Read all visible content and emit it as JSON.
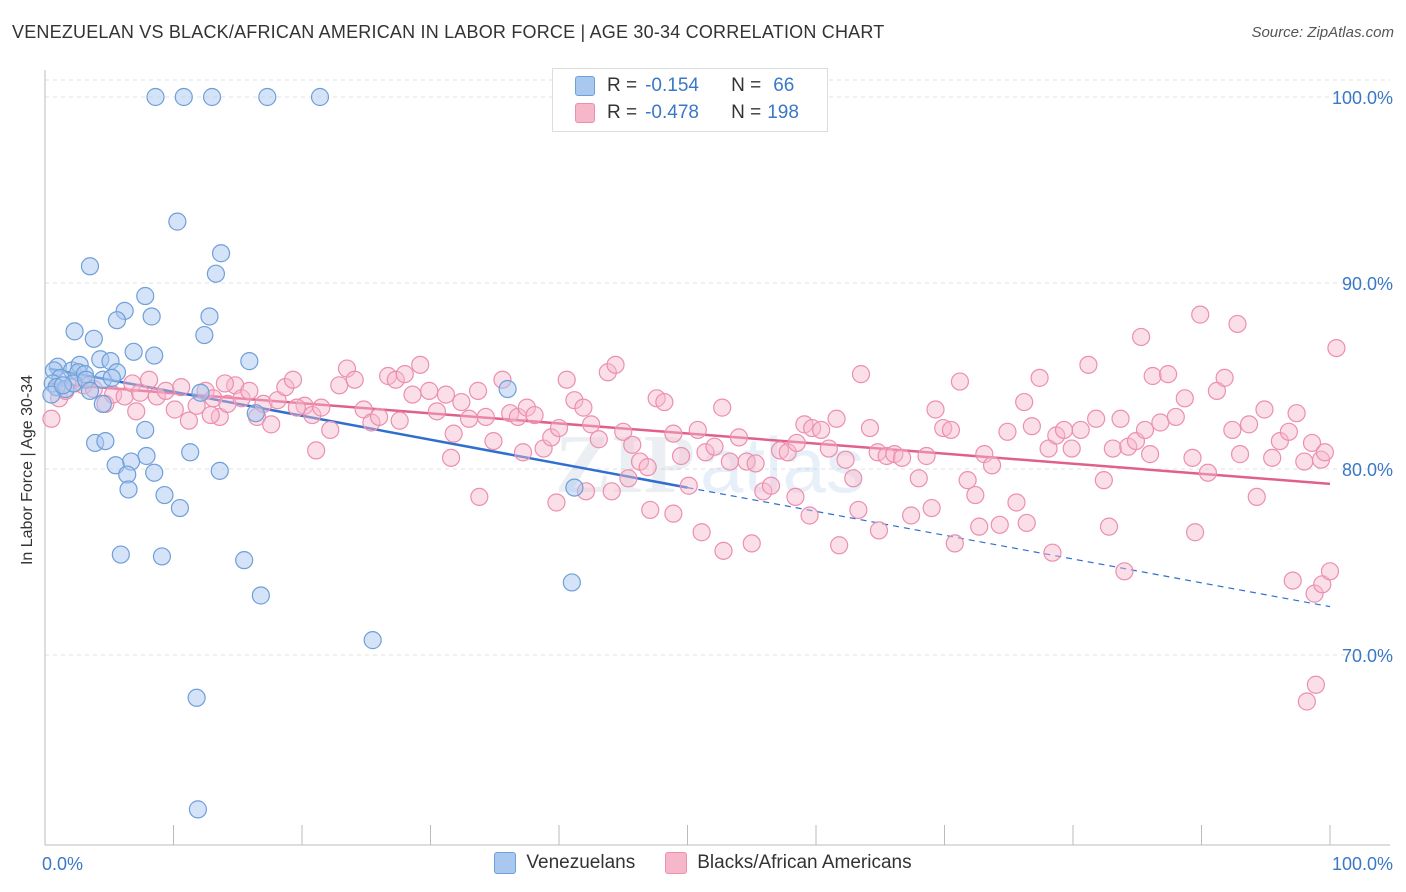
{
  "header": {
    "title": "VENEZUELAN VS BLACK/AFRICAN AMERICAN IN LABOR FORCE | AGE 30-34 CORRELATION CHART",
    "source": "Source: ZipAtlas.com"
  },
  "legend": {
    "r_label": "R =",
    "n_label": "N =",
    "venezuelans": {
      "r": "-0.154",
      "n": "66"
    },
    "blacks": {
      "r": "-0.478",
      "n": "198"
    }
  },
  "watermark": {
    "zip": "ZIP",
    "atlas": "atlas"
  },
  "colors": {
    "venezuelans_fill": "#a9c8f0",
    "venezuelans_stroke": "#6f9fd8",
    "venezuelans_line": "#2f6fd0",
    "blacks_fill": "#f7b7cb",
    "blacks_stroke": "#ec8fae",
    "blacks_line": "#e0608c",
    "axis_label": "#3a78c6",
    "grid": "#e2e2e2"
  },
  "chart_data": {
    "type": "scatter",
    "title": "VENEZUELAN VS BLACK/AFRICAN AMERICAN IN LABOR FORCE | AGE 30-34 CORRELATION CHART",
    "xlabel": "",
    "ylabel": "In Labor Force | Age 30-34",
    "xlim": [
      0,
      100
    ],
    "ylim": [
      60,
      102
    ],
    "x_tick_labels": [
      "0.0%",
      "100.0%"
    ],
    "y_ticks": [
      70,
      80,
      90,
      100
    ],
    "y_tick_labels": [
      "70.0%",
      "80.0%",
      "90.0%",
      "100.0%"
    ],
    "grid": true,
    "legend_position": "bottom",
    "series": [
      {
        "name": "Venezuelans",
        "r": -0.154,
        "n": 66,
        "trend": {
          "x0": 0.3,
          "y0": 85.4,
          "x1": 50,
          "y1": 79.0,
          "dashed_to_x": 100,
          "dashed_to_y": 72.6
        },
        "points": [
          [
            8.6,
            100
          ],
          [
            10.8,
            100
          ],
          [
            13,
            100
          ],
          [
            17.3,
            100
          ],
          [
            21.4,
            100
          ],
          [
            10.3,
            93.3
          ],
          [
            13.7,
            91.6
          ],
          [
            3.5,
            90.9
          ],
          [
            13.3,
            90.5
          ],
          [
            7.8,
            89.3
          ],
          [
            6.2,
            88.5
          ],
          [
            5.6,
            88
          ],
          [
            8.3,
            88.2
          ],
          [
            12.8,
            88.2
          ],
          [
            2.3,
            87.4
          ],
          [
            3.8,
            87
          ],
          [
            12.4,
            87.2
          ],
          [
            6.9,
            86.3
          ],
          [
            8.5,
            86.1
          ],
          [
            4.3,
            85.9
          ],
          [
            5.1,
            85.8
          ],
          [
            1,
            85.5
          ],
          [
            2.1,
            85.3
          ],
          [
            2.7,
            85.6
          ],
          [
            2.6,
            85.2
          ],
          [
            3.1,
            85.1
          ],
          [
            0.7,
            85.3
          ],
          [
            15.9,
            85.8
          ],
          [
            5.6,
            85.2
          ],
          [
            1.2,
            84.9
          ],
          [
            0.6,
            84.6
          ],
          [
            0.9,
            84.4
          ],
          [
            1.6,
            84.3
          ],
          [
            2.2,
            84.6
          ],
          [
            3.2,
            84.8
          ],
          [
            3.5,
            84.2
          ],
          [
            0.5,
            84
          ],
          [
            4.5,
            84.8
          ],
          [
            5.2,
            84.9
          ],
          [
            1.4,
            84.5
          ],
          [
            12.1,
            84.1
          ],
          [
            36,
            84.3
          ],
          [
            16.4,
            83
          ],
          [
            4.5,
            83.5
          ],
          [
            7.8,
            82.1
          ],
          [
            3.9,
            81.4
          ],
          [
            4.7,
            81.5
          ],
          [
            11.3,
            80.9
          ],
          [
            7.9,
            80.7
          ],
          [
            6.7,
            80.4
          ],
          [
            5.5,
            80.2
          ],
          [
            6.4,
            79.7
          ],
          [
            8.5,
            79.8
          ],
          [
            13.6,
            79.9
          ],
          [
            6.5,
            78.9
          ],
          [
            9.3,
            78.6
          ],
          [
            10.5,
            77.9
          ],
          [
            41.2,
            79
          ],
          [
            5.9,
            75.4
          ],
          [
            9.1,
            75.3
          ],
          [
            15.5,
            75.1
          ],
          [
            16.8,
            73.2
          ],
          [
            41,
            73.9
          ],
          [
            25.5,
            70.8
          ],
          [
            11.8,
            67.7
          ],
          [
            11.9,
            61.7
          ]
        ]
      },
      {
        "name": "Blacks/African Americans",
        "r": -0.478,
        "n": 198,
        "trend": {
          "x0": 0.3,
          "y0": 84.6,
          "x1": 100,
          "y1": 79.2
        },
        "points": [
          [
            0.5,
            82.7
          ],
          [
            1.1,
            83.8
          ],
          [
            1.6,
            84.2
          ],
          [
            2.3,
            84.6
          ],
          [
            3,
            84.5
          ],
          [
            3.8,
            84.3
          ],
          [
            4.7,
            83.5
          ],
          [
            5.3,
            84
          ],
          [
            6.2,
            83.9
          ],
          [
            6.8,
            84.6
          ],
          [
            7.4,
            84.1
          ],
          [
            8.1,
            84.8
          ],
          [
            8.7,
            83.9
          ],
          [
            9.4,
            84.2
          ],
          [
            10.1,
            83.2
          ],
          [
            10.6,
            84.4
          ],
          [
            11.2,
            82.6
          ],
          [
            11.8,
            83.4
          ],
          [
            12.5,
            84.2
          ],
          [
            13.1,
            83.8
          ],
          [
            13.6,
            82.8
          ],
          [
            14.2,
            83.5
          ],
          [
            14.8,
            84.5
          ],
          [
            15.3,
            83.8
          ],
          [
            15.9,
            84.2
          ],
          [
            16.5,
            82.8
          ],
          [
            17,
            83.5
          ],
          [
            17.6,
            82.4
          ],
          [
            18.1,
            83.7
          ],
          [
            18.7,
            84.4
          ],
          [
            19.3,
            84.8
          ],
          [
            20.2,
            83.4
          ],
          [
            20.8,
            82.9
          ],
          [
            21.5,
            83.3
          ],
          [
            22.2,
            82.1
          ],
          [
            22.9,
            84.5
          ],
          [
            23.5,
            85.4
          ],
          [
            24.1,
            84.8
          ],
          [
            24.8,
            83.2
          ],
          [
            25.4,
            82.5
          ],
          [
            26,
            82.8
          ],
          [
            26.7,
            85
          ],
          [
            27.3,
            84.8
          ],
          [
            28,
            85.1
          ],
          [
            28.6,
            84
          ],
          [
            29.2,
            85.6
          ],
          [
            29.9,
            84.2
          ],
          [
            30.5,
            83.1
          ],
          [
            31.2,
            84
          ],
          [
            31.8,
            81.9
          ],
          [
            32.4,
            83.6
          ],
          [
            33,
            82.7
          ],
          [
            33.7,
            84.2
          ],
          [
            34.3,
            82.8
          ],
          [
            34.9,
            81.5
          ],
          [
            35.6,
            84.8
          ],
          [
            36.2,
            83
          ],
          [
            36.8,
            82.8
          ],
          [
            37.5,
            83.3
          ],
          [
            38.1,
            82.9
          ],
          [
            38.8,
            81.1
          ],
          [
            39.4,
            81.7
          ],
          [
            40,
            82.2
          ],
          [
            40.6,
            84.8
          ],
          [
            41.2,
            83.7
          ],
          [
            41.9,
            83.3
          ],
          [
            42.5,
            82.4
          ],
          [
            43.1,
            81.6
          ],
          [
            43.8,
            85.2
          ],
          [
            44.4,
            85.6
          ],
          [
            45,
            82
          ],
          [
            45.7,
            81.3
          ],
          [
            46.3,
            80.4
          ],
          [
            46.9,
            80.1
          ],
          [
            47.6,
            83.8
          ],
          [
            48.2,
            83.6
          ],
          [
            48.9,
            81.9
          ],
          [
            49.5,
            80.7
          ],
          [
            50.1,
            79.1
          ],
          [
            50.8,
            82.1
          ],
          [
            51.4,
            80.9
          ],
          [
            52.1,
            81.2
          ],
          [
            52.7,
            83.3
          ],
          [
            53.3,
            80.4
          ],
          [
            54,
            81.7
          ],
          [
            54.6,
            80.4
          ],
          [
            55.3,
            80.3
          ],
          [
            55.9,
            78.8
          ],
          [
            56.5,
            79.1
          ],
          [
            57.2,
            81
          ],
          [
            57.8,
            80.9
          ],
          [
            58.5,
            81.4
          ],
          [
            59.1,
            82.4
          ],
          [
            59.7,
            82.2
          ],
          [
            60.4,
            82.1
          ],
          [
            61,
            81.1
          ],
          [
            61.6,
            82.7
          ],
          [
            62.3,
            80.5
          ],
          [
            62.9,
            79.5
          ],
          [
            63.5,
            85.1
          ],
          [
            64.2,
            82.2
          ],
          [
            64.8,
            80.9
          ],
          [
            65.5,
            80.7
          ],
          [
            66.1,
            80.8
          ],
          [
            66.7,
            80.6
          ],
          [
            67.4,
            77.5
          ],
          [
            68,
            79.5
          ],
          [
            68.6,
            80.7
          ],
          [
            69.3,
            83.2
          ],
          [
            69.9,
            82.2
          ],
          [
            70.5,
            82.1
          ],
          [
            71.2,
            84.7
          ],
          [
            71.8,
            79.4
          ],
          [
            72.4,
            78.6
          ],
          [
            73.1,
            80.8
          ],
          [
            73.7,
            80.2
          ],
          [
            74.3,
            77
          ],
          [
            74.9,
            82
          ],
          [
            75.6,
            78.2
          ],
          [
            76.2,
            83.6
          ],
          [
            76.8,
            82.3
          ],
          [
            77.4,
            84.9
          ],
          [
            78.1,
            81.1
          ],
          [
            78.7,
            81.8
          ],
          [
            79.3,
            82.1
          ],
          [
            79.9,
            81.1
          ],
          [
            80.6,
            82.1
          ],
          [
            81.2,
            85.6
          ],
          [
            81.8,
            82.7
          ],
          [
            82.4,
            79.4
          ],
          [
            83.1,
            81.1
          ],
          [
            83.7,
            82.7
          ],
          [
            84.3,
            81.2
          ],
          [
            84.9,
            81.5
          ],
          [
            85.6,
            82.1
          ],
          [
            86.2,
            85
          ],
          [
            86.8,
            82.5
          ],
          [
            87.4,
            85.1
          ],
          [
            88,
            82.8
          ],
          [
            88.7,
            83.8
          ],
          [
            89.3,
            80.6
          ],
          [
            89.9,
            88.3
          ],
          [
            90.5,
            79.8
          ],
          [
            91.2,
            84.2
          ],
          [
            91.8,
            84.9
          ],
          [
            92.4,
            82.1
          ],
          [
            93,
            80.8
          ],
          [
            93.7,
            82.4
          ],
          [
            94.3,
            78.5
          ],
          [
            94.9,
            83.2
          ],
          [
            95.5,
            80.6
          ],
          [
            96.1,
            81.5
          ],
          [
            96.8,
            82
          ],
          [
            97.4,
            83
          ],
          [
            98,
            80.4
          ],
          [
            98.6,
            81.4
          ],
          [
            99.3,
            80.5
          ],
          [
            82.8,
            76.9
          ],
          [
            76.4,
            77.1
          ],
          [
            69,
            77.9
          ],
          [
            63.3,
            77.8
          ],
          [
            59.5,
            77.5
          ],
          [
            55,
            76
          ],
          [
            51.1,
            76.6
          ],
          [
            48.9,
            77.6
          ],
          [
            47.1,
            77.8
          ],
          [
            44.1,
            78.8
          ],
          [
            42.1,
            78.8
          ],
          [
            39.8,
            78.2
          ],
          [
            33.8,
            78.5
          ],
          [
            31.6,
            80.6
          ],
          [
            52.8,
            75.6
          ],
          [
            61.8,
            75.9
          ],
          [
            70.8,
            76
          ],
          [
            78.4,
            75.5
          ],
          [
            84,
            74.5
          ],
          [
            85.3,
            87.1
          ],
          [
            92.8,
            87.8
          ],
          [
            97.1,
            74
          ],
          [
            98.8,
            73.3
          ],
          [
            99.4,
            73.8
          ],
          [
            100,
            74.5
          ],
          [
            100.5,
            86.5
          ],
          [
            98.2,
            67.5
          ],
          [
            98.9,
            68.4
          ],
          [
            99.6,
            80.9
          ],
          [
            89.5,
            76.6
          ],
          [
            86,
            80.8
          ],
          [
            72.7,
            76.9
          ],
          [
            64.9,
            76.7
          ],
          [
            58.4,
            78.5
          ],
          [
            45.4,
            79.5
          ],
          [
            37.2,
            80.9
          ],
          [
            27.6,
            82.6
          ],
          [
            21.1,
            81
          ],
          [
            12.9,
            82.9
          ],
          [
            7.1,
            83.1
          ],
          [
            14,
            84.6
          ],
          [
            19.6,
            83.3
          ]
        ]
      }
    ]
  }
}
